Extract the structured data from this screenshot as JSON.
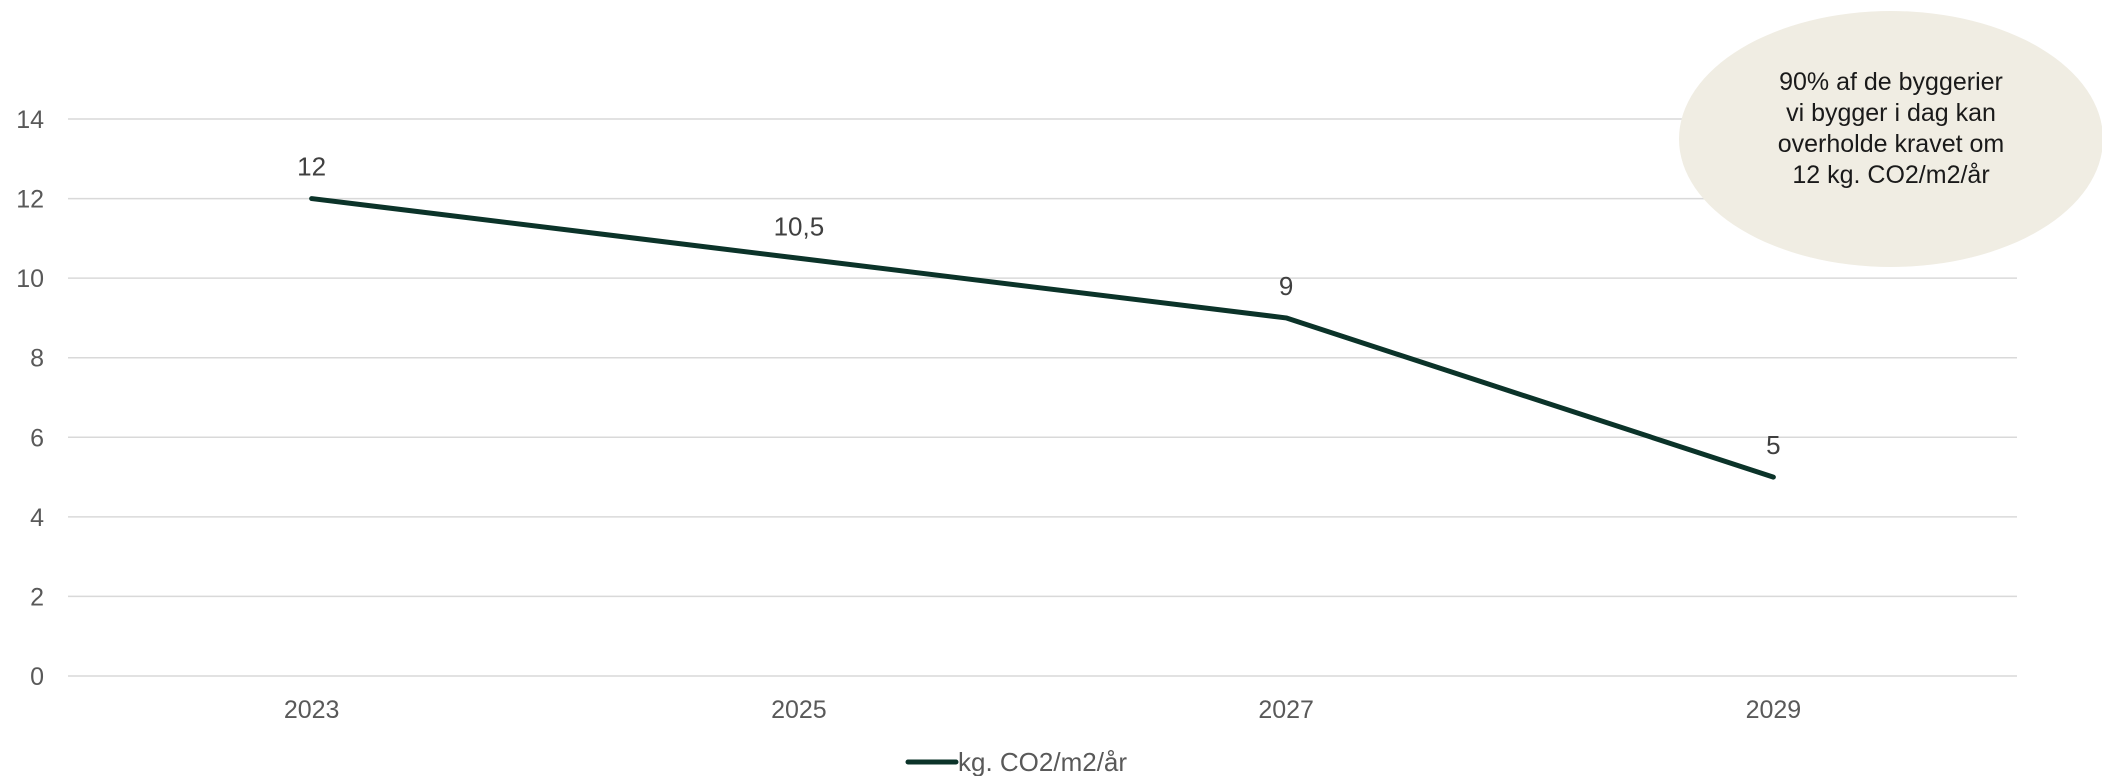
{
  "chart_data": {
    "type": "line",
    "categories": [
      "2023",
      "2025",
      "2027",
      "2029"
    ],
    "series": [
      {
        "name": "kg. CO2/m2/år",
        "values": [
          12,
          10.5,
          9,
          5
        ],
        "labels": [
          "12",
          "10,5",
          "9",
          "5"
        ],
        "color": "#0b3329"
      }
    ],
    "y_ticks": [
      "0",
      "2",
      "4",
      "6",
      "8",
      "10",
      "12",
      "14"
    ],
    "ylim": [
      0,
      14
    ],
    "grid": true,
    "legend": "bottom-center",
    "title": "",
    "xlabel": "",
    "ylabel": ""
  },
  "annotation": {
    "text": "90% af de byggerier\nvi bygger i dag kan\noverholde kravet om\n12 kg. CO2/m2/år",
    "background_color": "#f0ede3"
  }
}
